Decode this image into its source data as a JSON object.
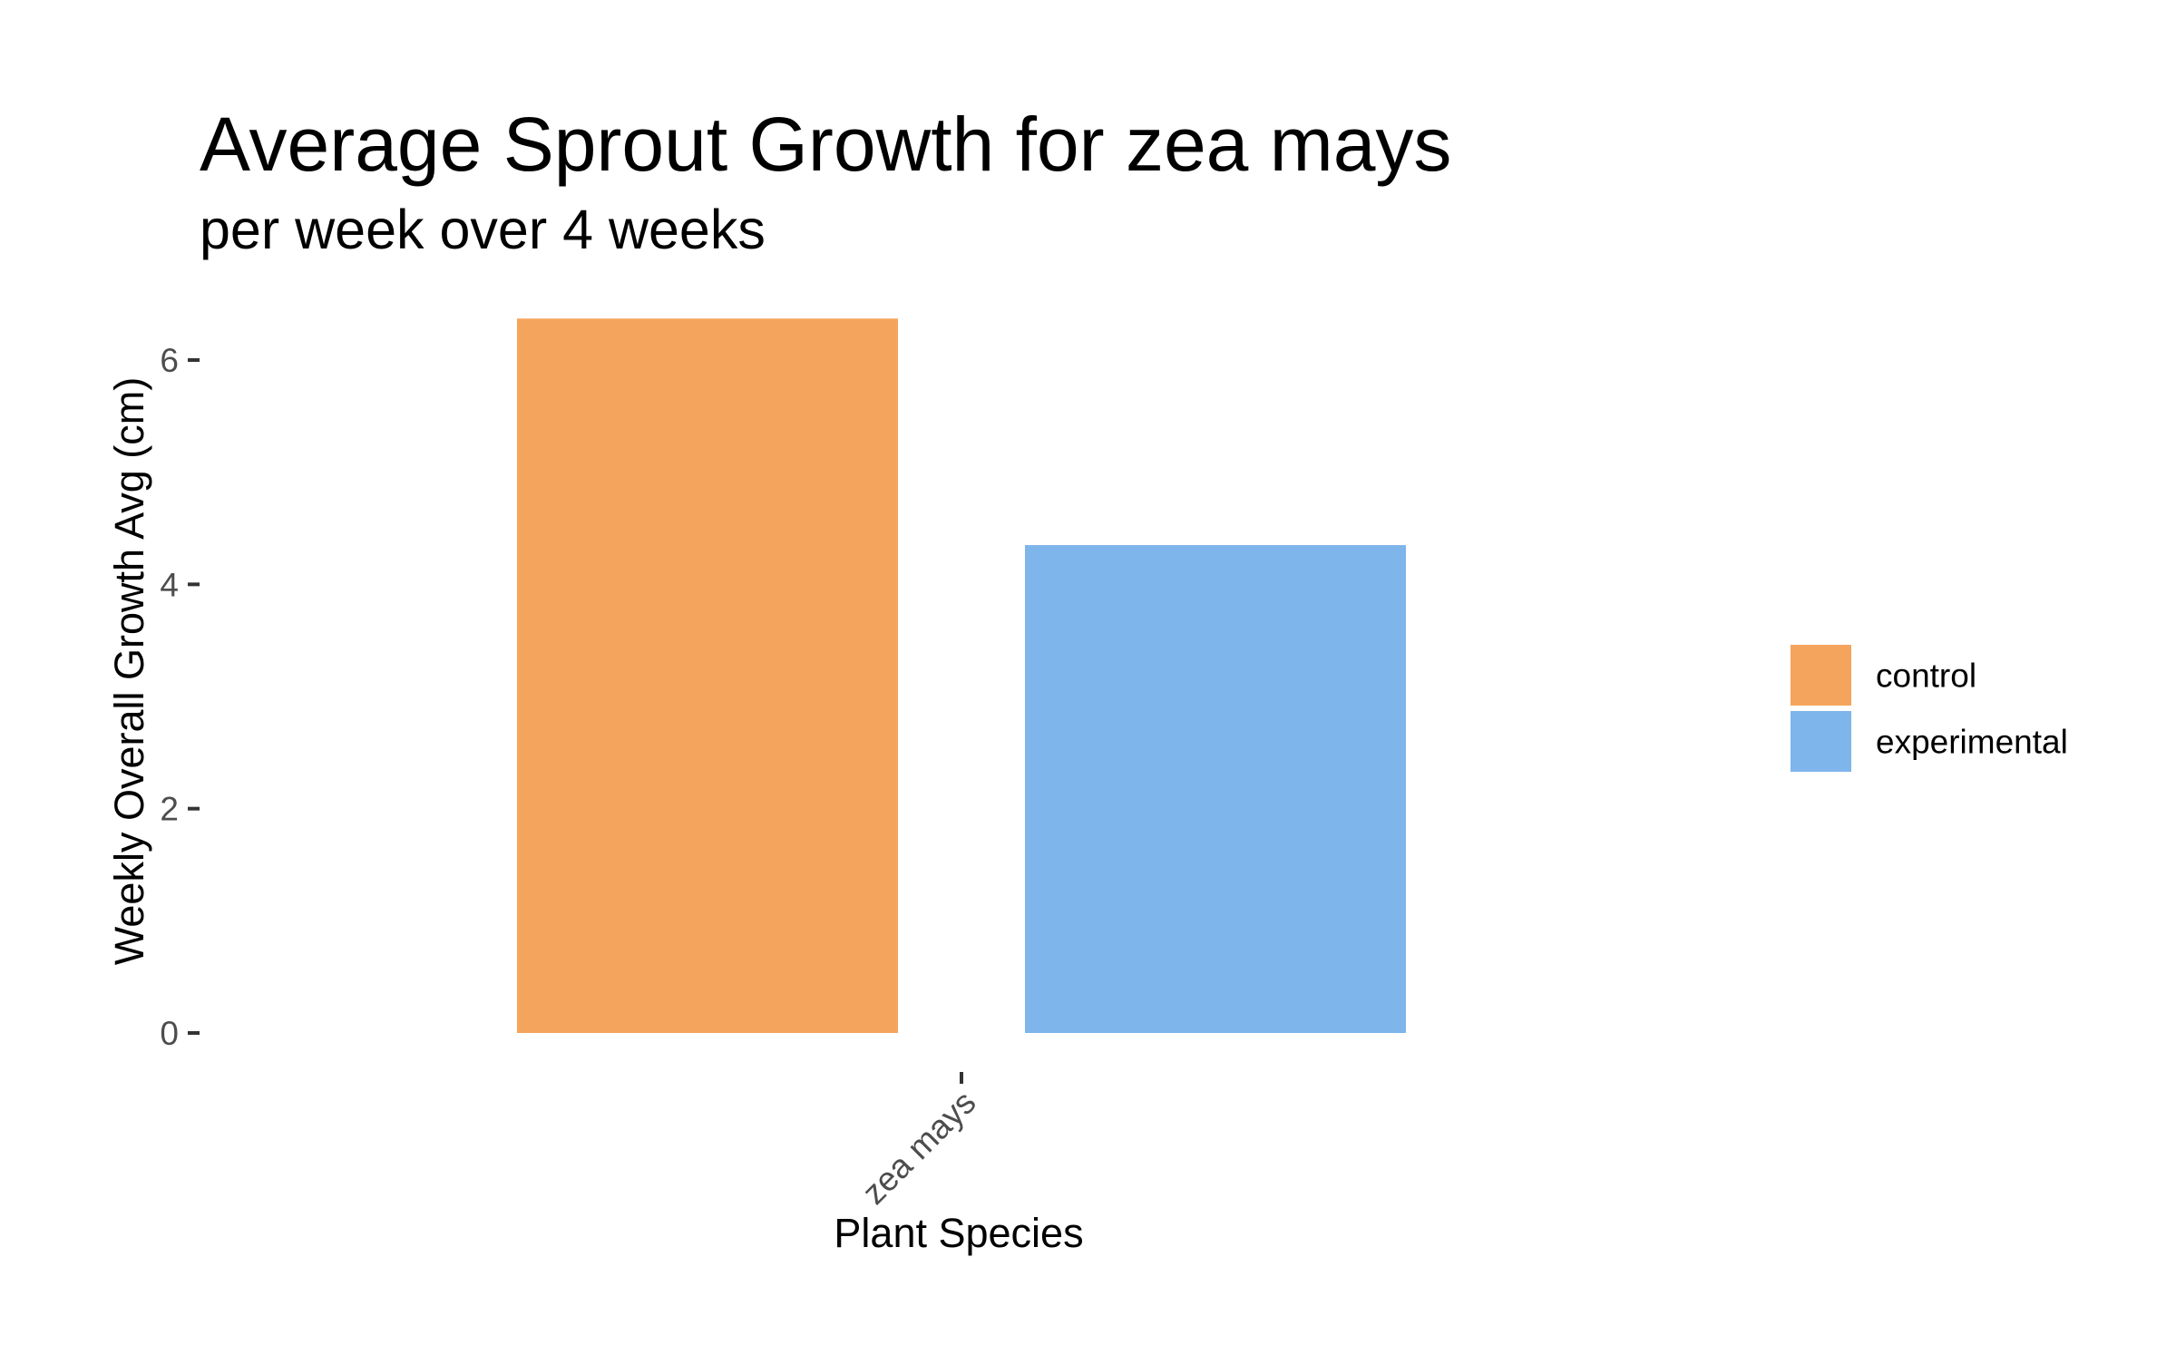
{
  "chart_data": {
    "type": "bar",
    "title": "Average Sprout Growth for zea mays",
    "subtitle": "per week over 4 weeks",
    "xlabel": "Plant Species",
    "ylabel": "Weekly Overall Growth Avg (cm)",
    "categories": [
      "zea mays"
    ],
    "series": [
      {
        "name": "control",
        "values": [
          6.37
        ],
        "color": "#F5A45D"
      },
      {
        "name": "experimental",
        "values": [
          4.35
        ],
        "color": "#7EB5EA"
      }
    ],
    "ylim": [
      0,
      6.6
    ],
    "yticks": [
      0,
      2,
      4,
      6
    ],
    "ytick_labels": [
      "0",
      "2",
      "4",
      "6"
    ],
    "grid": false,
    "legend_position": "right",
    "x_tick_label_rotation": "45"
  }
}
